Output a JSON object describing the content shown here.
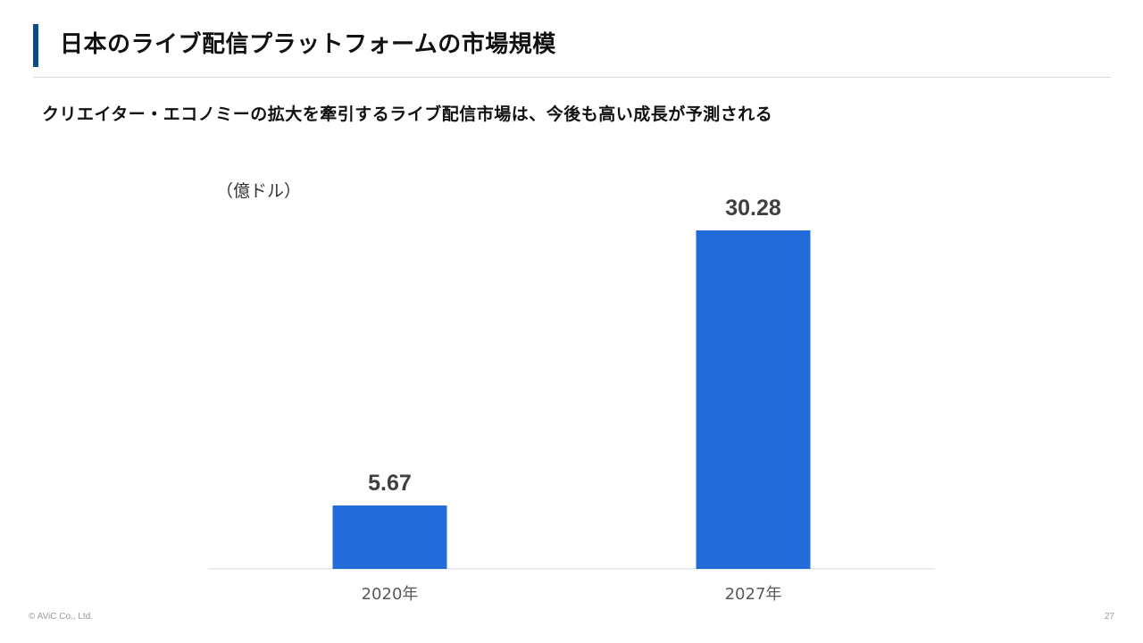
{
  "slide": {
    "title": "日本のライブ配信プラットフォームの市場規模",
    "subtitle": "クリエイター・エコノミーの拡大を牽引するライブ配信市場は、今後も高い成長が予測される",
    "footer": "© AViC Co., Ltd.",
    "page_number": "27",
    "accent_color": "#0b4a8c"
  },
  "chart_data": {
    "type": "bar",
    "unit_label": "（億ドル）",
    "categories": [
      "2020年",
      "2027年"
    ],
    "values": [
      5.67,
      30.28
    ],
    "data_labels": [
      "5.67",
      "30.28"
    ],
    "ylim": [
      0,
      30.28
    ],
    "bar_color": "#236bd8",
    "grid": false,
    "legend": "none"
  }
}
